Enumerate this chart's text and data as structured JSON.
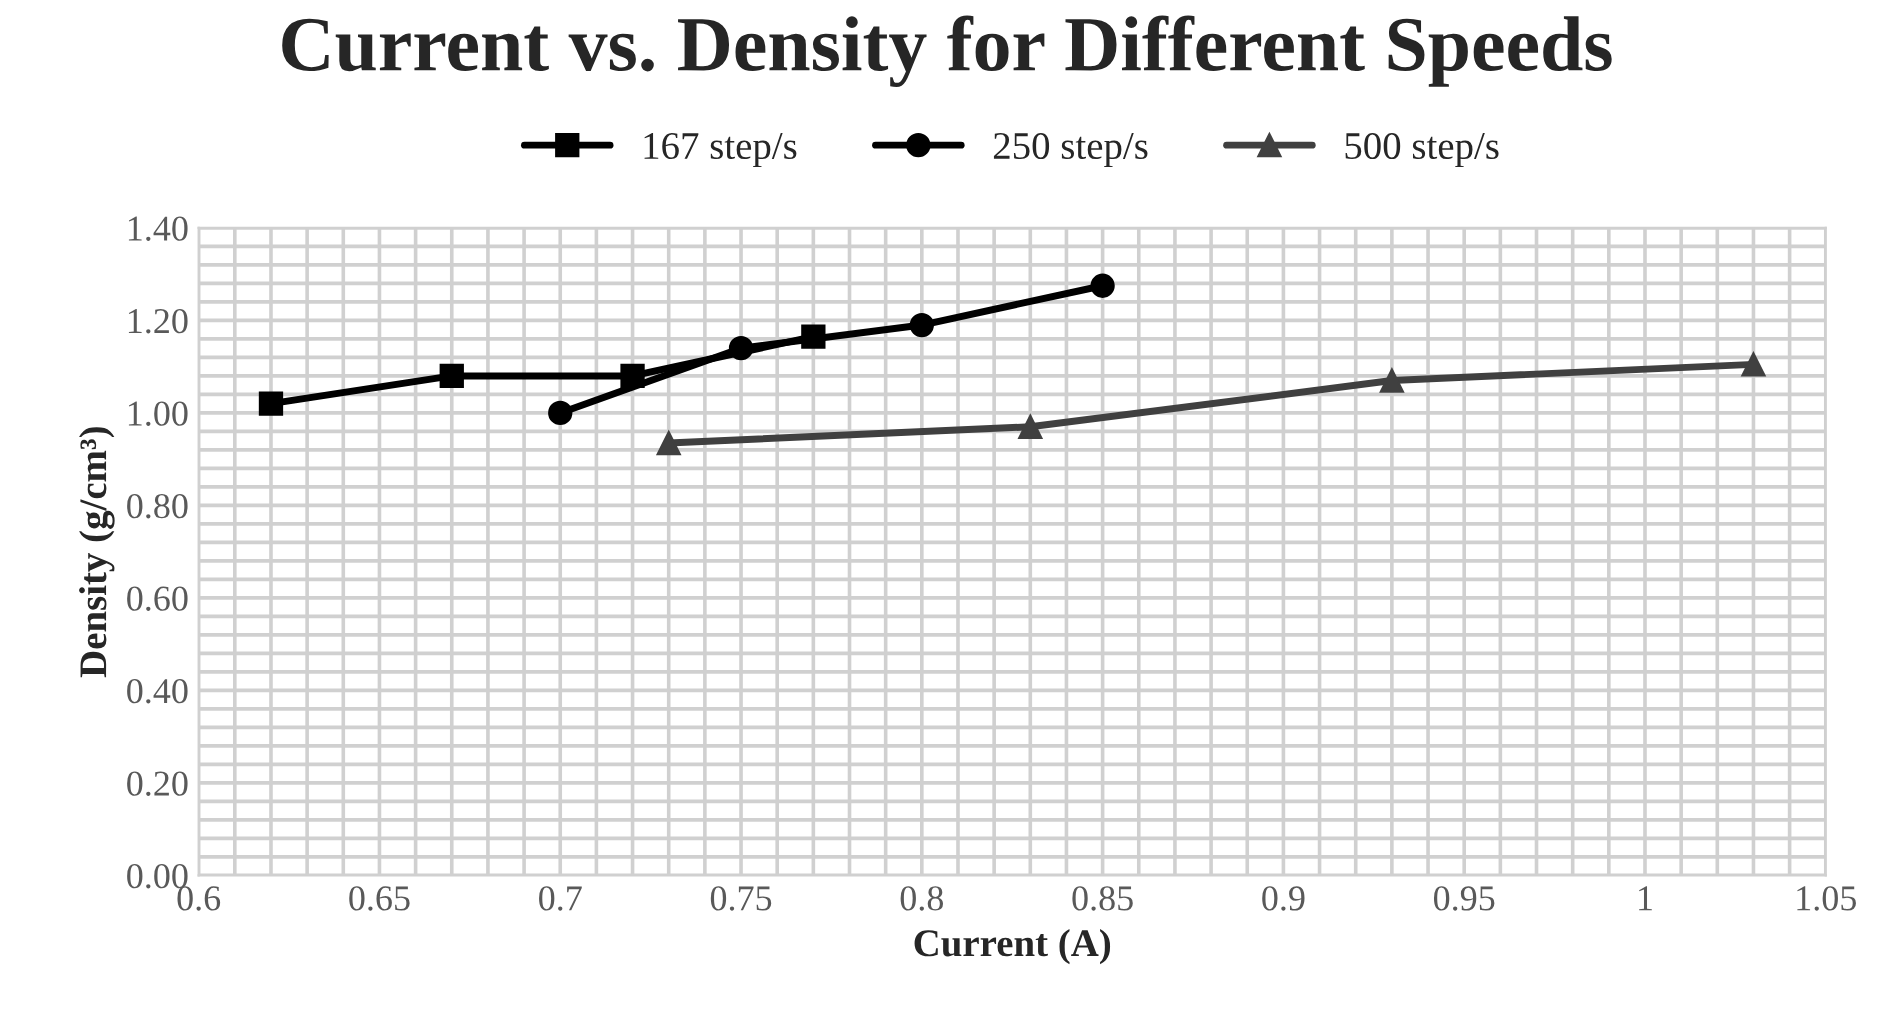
{
  "chart_data": {
    "type": "line",
    "title": "Current vs. Density for Different Speeds",
    "xlabel": "Current (A)",
    "ylabel": "Density (g/cm³)",
    "xlim": [
      0.6,
      1.05
    ],
    "xticks": [
      {
        "value": 0.6,
        "label": "0.6"
      },
      {
        "value": 0.65,
        "label": "0.65"
      },
      {
        "value": 0.7,
        "label": "0.7"
      },
      {
        "value": 0.75,
        "label": "0.75"
      },
      {
        "value": 0.8,
        "label": "0.8"
      },
      {
        "value": 0.85,
        "label": "0.85"
      },
      {
        "value": 0.9,
        "label": "0.9"
      },
      {
        "value": 0.95,
        "label": "0.95"
      },
      {
        "value": 1,
        "label": "1"
      },
      {
        "value": 1.05,
        "label": "1.05"
      }
    ],
    "ylim": [
      0,
      1.4
    ],
    "yticks": [
      {
        "value": 0,
        "label": "0.00"
      },
      {
        "value": 0.2,
        "label": "0.20"
      },
      {
        "value": 0.4,
        "label": "0.40"
      },
      {
        "value": 0.6,
        "label": "0.60"
      },
      {
        "value": 0.8,
        "label": "0.80"
      },
      {
        "value": 1.0,
        "label": "1.00"
      },
      {
        "value": 1.2,
        "label": "1.20"
      },
      {
        "value": 1.4,
        "label": "1.40"
      }
    ],
    "grid": true,
    "legend": "top",
    "line_style": "solid",
    "series": [
      {
        "name": "167 step/s",
        "color": "#000000",
        "marker": "square",
        "x": [
          0.62,
          0.67,
          0.72,
          0.77
        ],
        "values": [
          1.02,
          1.08,
          1.08,
          1.165
        ]
      },
      {
        "name": "250 step/s",
        "color": "#000000",
        "marker": "circle",
        "x": [
          0.7,
          0.75,
          0.8,
          0.85
        ],
        "values": [
          1.0,
          1.14,
          1.19,
          1.275
        ]
      },
      {
        "name": "500 step/s",
        "color": "#404040",
        "marker": "triangle",
        "x": [
          0.73,
          0.83,
          0.93,
          1.03
        ],
        "values": [
          0.935,
          0.97,
          1.07,
          1.105
        ]
      }
    ]
  }
}
